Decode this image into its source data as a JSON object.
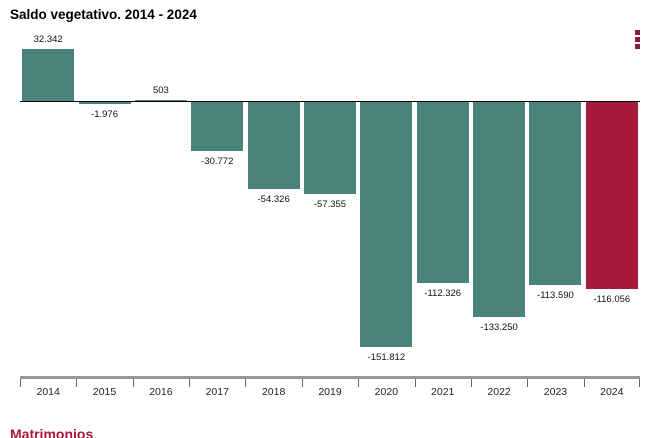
{
  "header": {
    "title": "Saldo vegetativo. 2014 - 2024"
  },
  "context_menu": {
    "icon": "kebab-vertical-icon",
    "color": "#8C1D3B"
  },
  "chart_data": {
    "type": "bar",
    "title": "Saldo vegetativo. 2014 - 2024",
    "categories": [
      "2014",
      "2015",
      "2016",
      "2017",
      "2018",
      "2019",
      "2020",
      "2021",
      "2022",
      "2023",
      "2024"
    ],
    "values": [
      32342,
      -1976,
      503,
      -30772,
      -54326,
      -57355,
      -151812,
      -112326,
      -133250,
      -113590,
      -116056
    ],
    "data_labels": [
      "32.342",
      "-1.976",
      "503",
      "-30.772",
      "-54.326",
      "-57.355",
      "-151.812",
      "-112.326",
      "-133.250",
      "-113.590",
      "-116.056"
    ],
    "bar_color": "#4A837B",
    "highlight_color": "#A61B3B",
    "highlight_category": "2024",
    "xlabel": "",
    "ylabel": "",
    "ylim": [
      -160000,
      40000
    ],
    "grid": false,
    "legend": "none",
    "axis_color": "#999999",
    "zero_line_color": "#000000"
  },
  "footer": {
    "next_chart_title": "Matrimonios",
    "color": "#A61B3B"
  }
}
